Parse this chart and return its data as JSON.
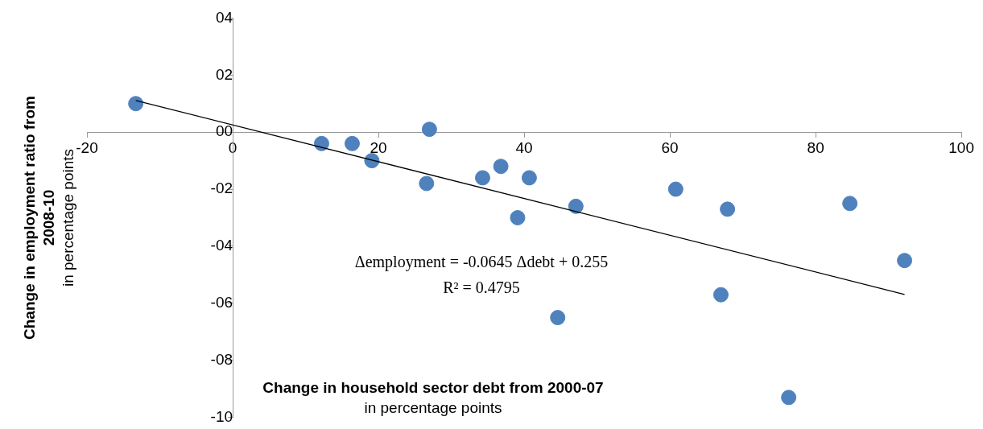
{
  "chart_data": {
    "type": "scatter",
    "xlabel": "Change in household sector debt from 2000-07\nin percentage points",
    "ylabel": "Change in employment ratio from\n2008-10\nin percentage points",
    "xlim": [
      -20,
      100
    ],
    "xticks": [
      -20,
      0,
      20,
      40,
      60,
      80,
      100
    ],
    "ylim": [
      -10,
      4
    ],
    "yticks": [
      {
        "value": 4,
        "label": "04"
      },
      {
        "value": 2,
        "label": "02"
      },
      {
        "value": 0,
        "label": "00"
      },
      {
        "value": -2,
        "label": "-02"
      },
      {
        "value": -4,
        "label": "-04"
      },
      {
        "value": -6,
        "label": "-06"
      },
      {
        "value": -8,
        "label": "-08"
      },
      {
        "value": -10,
        "label": "-10"
      }
    ],
    "grid": false,
    "legend": false,
    "marker": "circle",
    "series": [
      {
        "type": "scatter",
        "color": "#4f81bd",
        "x": [
          -13.3,
          12.2,
          16.4,
          19.1,
          27.0,
          26.6,
          34.3,
          36.8,
          40.7,
          39.1,
          47.1,
          44.6,
          60.8,
          67.9,
          67.0,
          84.7,
          92.2,
          76.3
        ],
        "values": [
          1.0,
          -0.4,
          -0.4,
          -1.0,
          0.1,
          -1.8,
          -1.6,
          -1.2,
          -1.6,
          -3.0,
          -2.6,
          -6.5,
          -2.0,
          -2.7,
          -5.7,
          -2.5,
          -4.5,
          -9.3
        ]
      },
      {
        "type": "line",
        "color": "#000000",
        "marker": "none",
        "x": [
          -13.3,
          92.2
        ],
        "values": [
          1.11,
          -5.69
        ]
      }
    ],
    "annotations": [
      "Δemployment = -0.0645 Δdebt + 0.255",
      "R² = 0.4795"
    ]
  }
}
